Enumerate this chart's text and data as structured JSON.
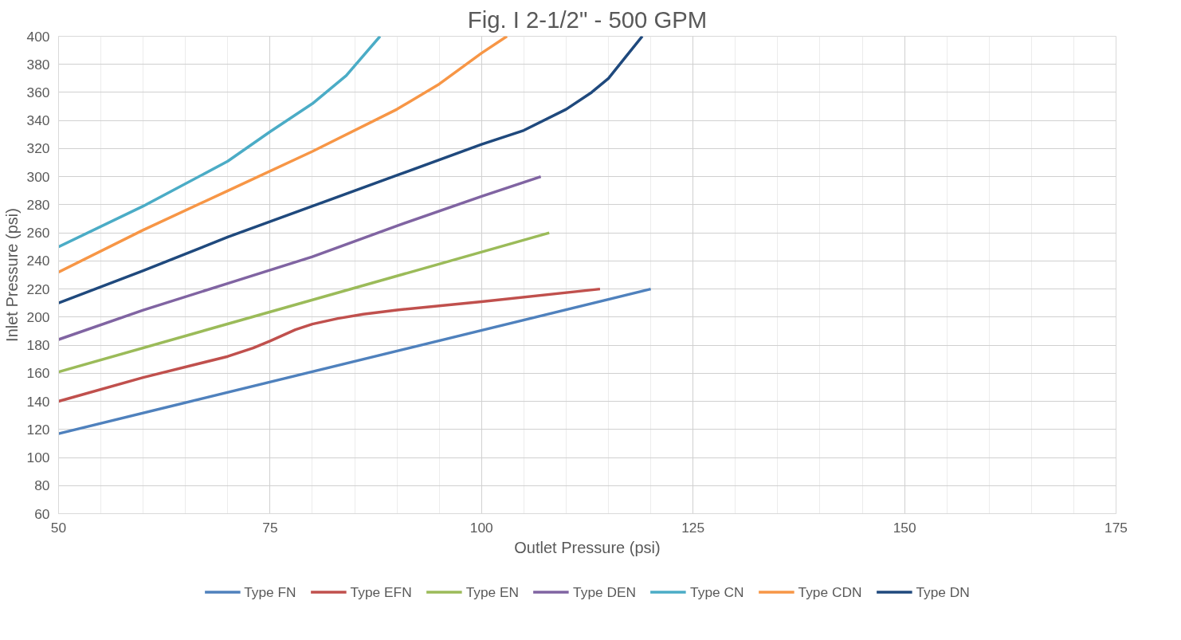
{
  "chart_data": {
    "type": "line",
    "title": "Fig. I 2-1/2\" - 500 GPM",
    "xlabel": "Outlet Pressure (psi)",
    "ylabel": "Inlet Pressure (psi)",
    "xlim": [
      50,
      175
    ],
    "xticks": [
      50,
      75,
      100,
      125,
      150,
      175
    ],
    "ylim": [
      60,
      400
    ],
    "yticks": [
      60,
      80,
      100,
      120,
      140,
      160,
      180,
      200,
      220,
      240,
      260,
      280,
      300,
      320,
      340,
      360,
      380,
      400
    ],
    "grid": true,
    "legend": "bottom",
    "marker": "none",
    "line_style": "solid",
    "series": [
      {
        "name": "Type FN",
        "color": "#4f81bd",
        "x": [
          50,
          120
        ],
        "values": [
          117,
          220
        ]
      },
      {
        "name": "Type EFN",
        "color": "#c0504d",
        "x": [
          50,
          60,
          70,
          73,
          75,
          78,
          80,
          83,
          86,
          90,
          100,
          114
        ],
        "values": [
          140,
          157,
          172,
          178,
          183,
          191,
          195,
          199,
          202,
          205,
          211,
          220
        ]
      },
      {
        "name": "Type EN",
        "color": "#9bbb59",
        "x": [
          50,
          108
        ],
        "values": [
          161,
          260
        ]
      },
      {
        "name": "Type DEN",
        "color": "#8064a2",
        "x": [
          50,
          60,
          70,
          80,
          90,
          100,
          107
        ],
        "values": [
          184,
          205,
          224,
          243,
          265,
          286,
          300
        ]
      },
      {
        "name": "Type CN",
        "color": "#4bacc6",
        "x": [
          50,
          60,
          70,
          75,
          80,
          84,
          88
        ],
        "values": [
          250,
          279,
          311,
          332,
          352,
          372,
          400
        ]
      },
      {
        "name": "Type CDN",
        "color": "#f79646",
        "x": [
          50,
          60,
          70,
          80,
          90,
          95,
          100,
          103
        ],
        "values": [
          232,
          262,
          290,
          318,
          348,
          366,
          388,
          400
        ]
      },
      {
        "name": "Type DN",
        "color": "#1f497d",
        "x": [
          50,
          60,
          70,
          80,
          90,
          100,
          105,
          110,
          113,
          115,
          117,
          119
        ],
        "values": [
          210,
          233,
          257,
          279,
          301,
          323,
          333,
          348,
          360,
          370,
          385,
          400
        ]
      }
    ]
  }
}
